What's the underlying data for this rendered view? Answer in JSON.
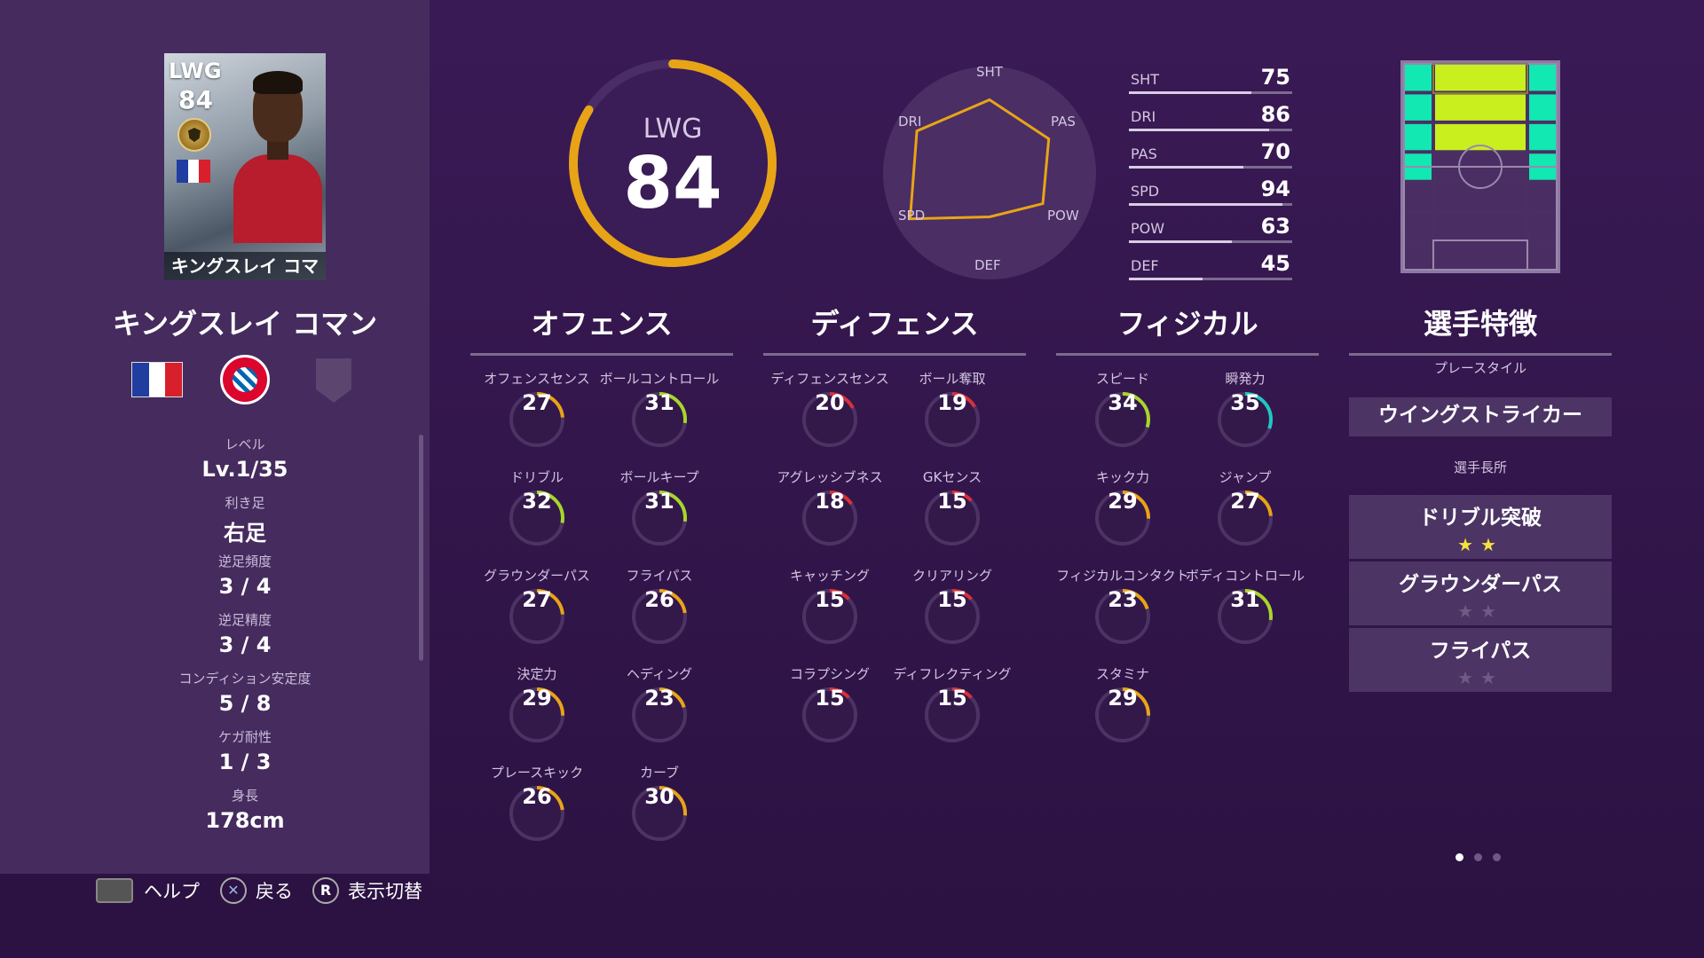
{
  "player": {
    "card_position": "LWG",
    "card_rating": "84",
    "card_name": "キングスレイ コマン",
    "name": "キングスレイ コマン"
  },
  "info": [
    {
      "label": "レベル",
      "value": "Lv.1/35"
    },
    {
      "label": "利き足",
      "value": "右足"
    },
    {
      "label": "逆足頻度",
      "value": "3 / 4"
    },
    {
      "label": "逆足精度",
      "value": "3 / 4"
    },
    {
      "label": "コンディション安定度",
      "value": "5 / 8"
    },
    {
      "label": "ケガ耐性",
      "value": "1 / 3"
    },
    {
      "label": "身長",
      "value": "178cm"
    }
  ],
  "controls": {
    "help": "ヘルプ",
    "back_symbol": "✕",
    "back": "戻る",
    "r_symbol": "R",
    "toggle": "表示切替"
  },
  "overall": {
    "position": "LWG",
    "rating": "84",
    "ring_fraction": 0.84
  },
  "radar": {
    "labels": [
      "SHT",
      "PAS",
      "POW",
      "DEF",
      "SPD",
      "DRI"
    ],
    "values": [
      75,
      70,
      63,
      45,
      94,
      86
    ],
    "line_color": "#e8a417"
  },
  "attributes": [
    {
      "name": "SHT",
      "value": "75"
    },
    {
      "name": "DRI",
      "value": "86"
    },
    {
      "name": "PAS",
      "value": "70"
    },
    {
      "name": "SPD",
      "value": "94"
    },
    {
      "name": "POW",
      "value": "63"
    },
    {
      "name": "DEF",
      "value": "45"
    }
  ],
  "sections": {
    "offense": "オフェンス",
    "defense": "ディフェンス",
    "physical": "フィジカル",
    "traits": "選手特徴"
  },
  "offense_stats": [
    {
      "label": "オフェンスセンス",
      "value": "27"
    },
    {
      "label": "ボールコントロール",
      "value": "31"
    },
    {
      "label": "ドリブル",
      "value": "32"
    },
    {
      "label": "ボールキープ",
      "value": "31"
    },
    {
      "label": "グラウンダーパス",
      "value": "27"
    },
    {
      "label": "フライパス",
      "value": "26"
    },
    {
      "label": "決定力",
      "value": "29"
    },
    {
      "label": "ヘディング",
      "value": "23"
    },
    {
      "label": "プレースキック",
      "value": "26"
    },
    {
      "label": "カーブ",
      "value": "30"
    }
  ],
  "defense_stats": [
    {
      "label": "ディフェンスセンス",
      "value": "20"
    },
    {
      "label": "ボール奪取",
      "value": "19"
    },
    {
      "label": "アグレッシブネス",
      "value": "18"
    },
    {
      "label": "GKセンス",
      "value": "15"
    },
    {
      "label": "キャッチング",
      "value": "15"
    },
    {
      "label": "クリアリング",
      "value": "15"
    },
    {
      "label": "コラプシング",
      "value": "15"
    },
    {
      "label": "ディフレクティング",
      "value": "15"
    }
  ],
  "physical_stats": [
    {
      "label": "スピード",
      "value": "34"
    },
    {
      "label": "瞬発力",
      "value": "35"
    },
    {
      "label": "キック力",
      "value": "29"
    },
    {
      "label": "ジャンプ",
      "value": "27"
    },
    {
      "label": "フィジカルコンタクト",
      "value": "23"
    },
    {
      "label": "ボディコントロール",
      "value": "31"
    },
    {
      "label": "スタミナ",
      "value": "29"
    }
  ],
  "traits": {
    "playstyle_label": "プレースタイル",
    "playstyle": "ウイングストライカー",
    "strengths_label": "選手長所",
    "strengths": [
      {
        "name": "ドリブル突破",
        "stars": 2
      },
      {
        "name": "グラウンダーパス",
        "stars": 0
      },
      {
        "name": "フライパス",
        "stars": 0
      }
    ]
  },
  "colors": {
    "ring": "#e8a417",
    "pitch_strong": "#c9ef1e",
    "pitch_wing": "#12e8b2",
    "stat_low": "#d9303a",
    "stat_mid": "#e8a417",
    "stat_high": "#a8d62a",
    "stat_top": "#1fc7c0"
  },
  "pager": {
    "pages": 3,
    "current": 1
  }
}
